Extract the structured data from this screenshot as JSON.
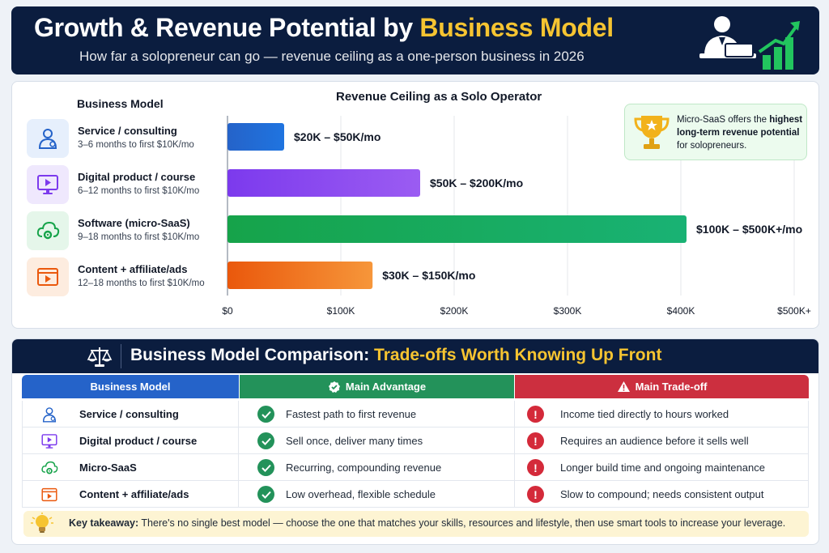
{
  "header": {
    "title_part1": "Growth & Revenue Potential by ",
    "title_highlight": "Business Model",
    "subtitle": "How far a solopreneur can go — revenue ceiling as a one-person business in 2026"
  },
  "models_heading": "Business Model",
  "models": [
    {
      "name": "Service / consulting",
      "time": "3–6 months to first $10K/mo",
      "icon": "person-icon",
      "color": "#2563c9",
      "tint": "#e6effc"
    },
    {
      "name": "Digital product / course",
      "time": "6–12 months to first $10K/mo",
      "icon": "monitor-play-icon",
      "color": "#7c3aed",
      "tint": "#efe8fd"
    },
    {
      "name": "Software (micro-SaaS)",
      "time": "9–18 months to first $10K/mo",
      "icon": "cloud-gear-icon",
      "color": "#16a34a",
      "tint": "#e5f6ea"
    },
    {
      "name": "Content + affiliate/ads",
      "time": "12–18 months to first $10K/mo",
      "icon": "video-play-icon",
      "color": "#ea580c",
      "tint": "#fdecdf"
    }
  ],
  "chart_data": {
    "type": "bar",
    "orientation": "horizontal",
    "title": "Revenue Ceiling as a Solo Operator",
    "categories": [
      "Service / consulting",
      "Digital product / course",
      "Software (micro-SaaS)",
      "Content + affiliate/ads"
    ],
    "values": [
      50000,
      170000,
      405000,
      128000
    ],
    "labels": [
      "$20K – $50K/mo",
      "$50K – $200K/mo",
      "$100K – $500K+/mo",
      "$30K – $150K/mo"
    ],
    "colors": [
      "#2563c9",
      "#7c3aed",
      "#16a34a",
      "#ea580c"
    ],
    "colors_end": [
      "#1f74e0",
      "#9b5cf2",
      "#19b274",
      "#f6963a"
    ],
    "xticks": [
      0,
      100000,
      200000,
      300000,
      400000,
      500000
    ],
    "xtick_labels": [
      "$0",
      "$100K",
      "$200K",
      "$300K",
      "$400K",
      "$500K+"
    ],
    "xlim": [
      0,
      500000
    ],
    "grid": true
  },
  "callout": {
    "text_before": "Micro-SaaS offers the ",
    "bold": "highest long-term revenue potential",
    "text_after": " for solopreneurs."
  },
  "comparison": {
    "title_part1": "Business Model Comparison: ",
    "title_highlight": "Trade-offs Worth Knowing Up Front",
    "headers": [
      "Business Model",
      "Main Advantage",
      "Main Trade-off"
    ],
    "rows": [
      {
        "model": "Service / consulting",
        "advantage": "Fastest path to first revenue",
        "tradeoff": "Income tied directly to hours worked"
      },
      {
        "model": "Digital product / course",
        "advantage": "Sell once, deliver many times",
        "tradeoff": "Requires an audience before it sells well"
      },
      {
        "model": "Micro-SaaS",
        "advantage": "Recurring, compounding revenue",
        "tradeoff": "Longer build time and ongoing maintenance"
      },
      {
        "model": "Content + affiliate/ads",
        "advantage": "Low overhead, flexible schedule",
        "tradeoff": "Slow to compound; needs consistent output"
      }
    ]
  },
  "takeaway": {
    "label": "Key takeaway:",
    "text": " There's no single best model — choose the one that matches your skills, resources and lifestyle, then use smart tools to increase your leverage."
  }
}
